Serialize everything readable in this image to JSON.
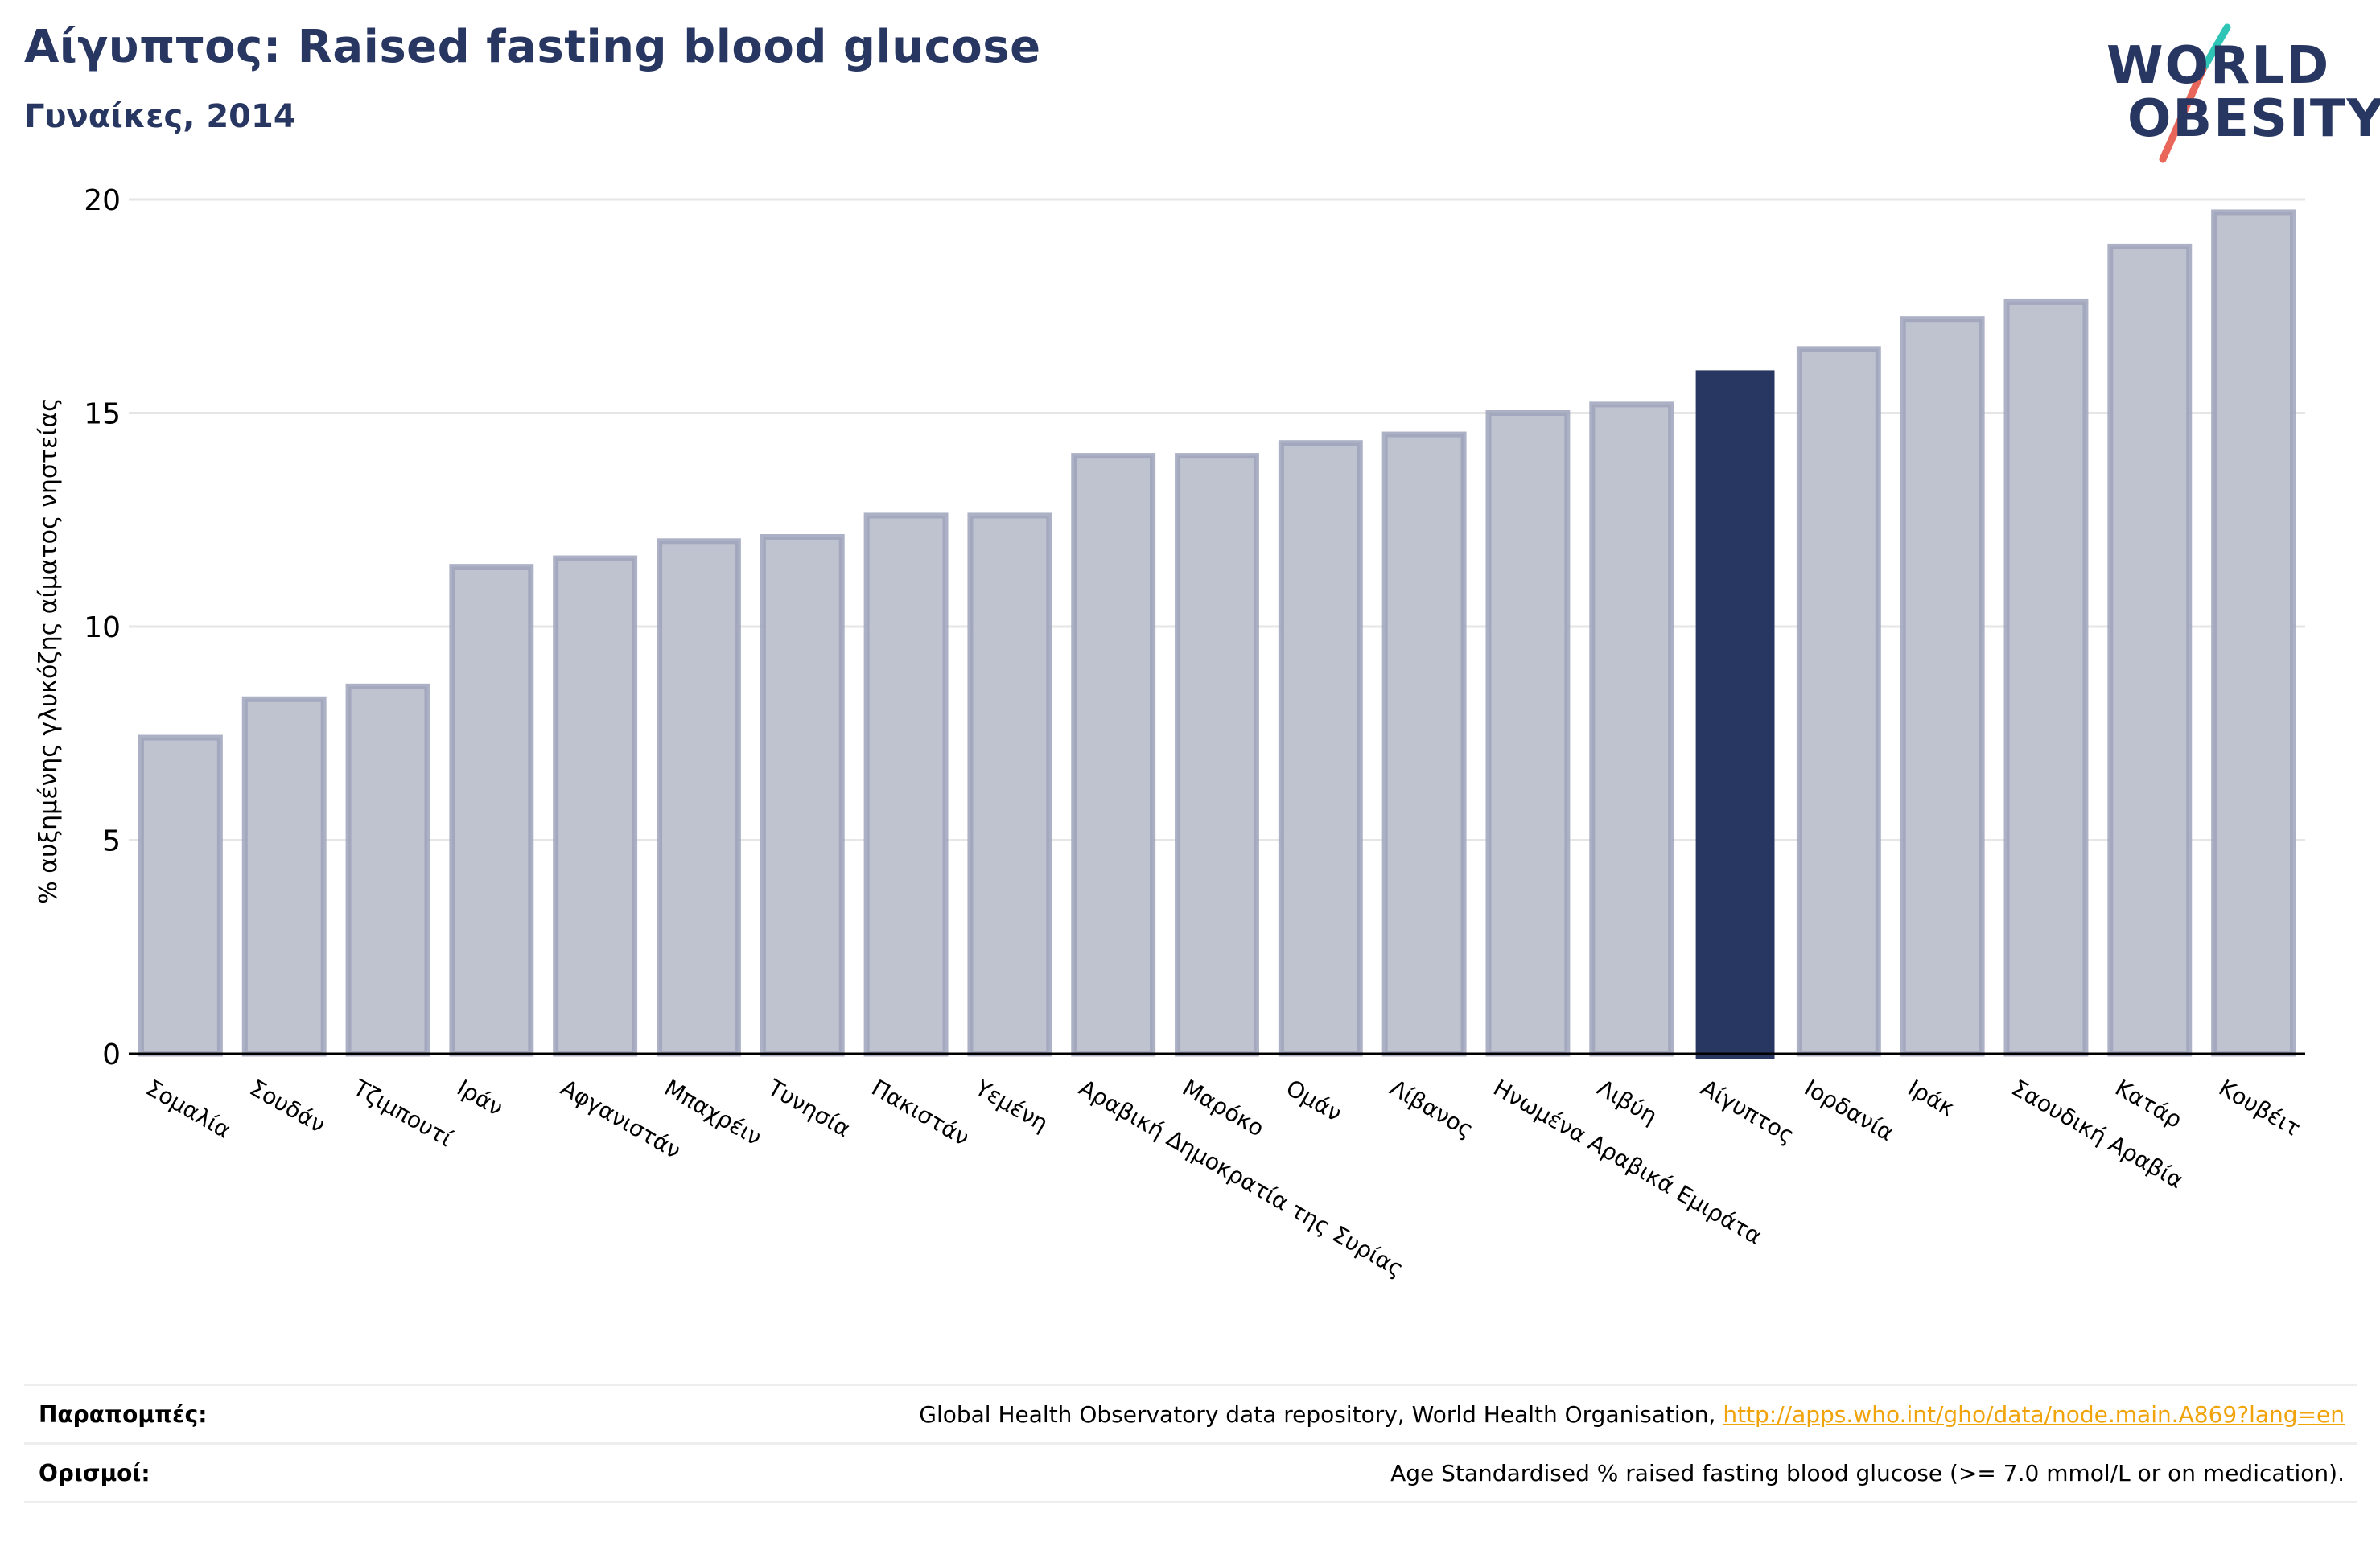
{
  "header": {
    "title": "Αίγυπτος: Raised fasting blood glucose",
    "subtitle": "Γυναίκες, 2014"
  },
  "logo": {
    "line1": "WORLD",
    "line2": "OBESITY",
    "accent_colors": [
      "#2ec4b6",
      "#e8675a"
    ]
  },
  "colors": {
    "bar": "#bfc3d0",
    "bar_edge": "#9ea3bb",
    "highlight": "#283761",
    "grid": "#e6e6e6",
    "axis": "#000000",
    "text": "#283761",
    "link": "#f0a30a"
  },
  "chart_data": {
    "type": "bar",
    "title": "Αίγυπτος: Raised fasting blood glucose",
    "subtitle": "Γυναίκες, 2014",
    "xlabel": "",
    "ylabel": "% αυξημένης γλυκόζης αίματος νηστείας",
    "ylim": [
      0,
      20
    ],
    "yticks": [
      0,
      5,
      10,
      15,
      20
    ],
    "grid": true,
    "highlight_category": "Αίγυπτος",
    "categories": [
      "Σομαλία",
      "Σουδάν",
      "Τζιμπουτί",
      "Ιράν",
      "Αφγανιστάν",
      "Μπαχρέιν",
      "Τυνησία",
      "Πακιστάν",
      "Υεμένη",
      "Αραβική Δημοκρατία της Συρίας",
      "Μαρόκο",
      "Ομάν",
      "Λίβανος",
      "Ηνωμένα Αραβικά Εμιράτα",
      "Λιβύη",
      "Αίγυπτος",
      "Ιορδανία",
      "Ιράκ",
      "Σαουδική Αραβία",
      "Κατάρ",
      "Κουβέιτ"
    ],
    "values": [
      7.4,
      8.3,
      8.6,
      11.4,
      11.6,
      12.0,
      12.1,
      12.6,
      12.6,
      14.0,
      14.0,
      14.3,
      14.5,
      15.0,
      15.2,
      16.0,
      16.5,
      17.2,
      17.6,
      18.9,
      19.7
    ]
  },
  "footer": {
    "references_label": "Παραπομπές:",
    "references_text": "Global Health Observatory data repository, World Health Organisation, ",
    "references_link": "http://apps.who.int/gho/data/node.main.A869?lang=en",
    "definitions_label": "Ορισμοί:",
    "definitions_text": "Age Standardised % raised fasting blood glucose (>= 7.0 mmol/L or on medication)."
  }
}
